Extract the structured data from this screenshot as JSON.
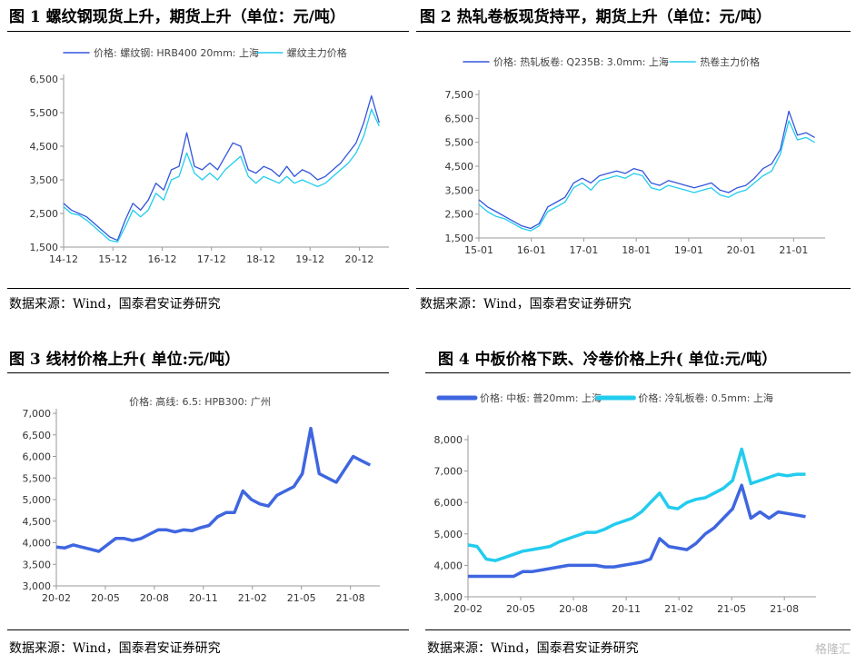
{
  "panels": [
    {
      "title": "图 1 螺纹钢现货上升，期货上升（单位：元/吨）",
      "source": "数据来源：Wind，国泰君安证券研究"
    },
    {
      "title": "图 2 热轧卷板现货持平，期货上升（单位：元/吨）",
      "source": "数据来源：Wind，国泰君安证券研究"
    },
    {
      "title": "图 3  线材价格上升( 单位:元/吨）",
      "source": "数据来源：Wind，国泰君安证券研究"
    },
    {
      "title": "图 4 中板价格下跌、冷卷价格上升( 单位:元/吨）",
      "source": "数据来源：Wind，国泰君安证券研究"
    }
  ],
  "watermark": "格隆汇",
  "chart_data": [
    {
      "type": "line",
      "xlabel": "",
      "ylabel": "",
      "x_ticks": [
        "14-12",
        "15-12",
        "16-12",
        "17-12",
        "18-12",
        "19-12",
        "20-12"
      ],
      "y_ticks": [
        "1,500",
        "2,500",
        "3,500",
        "4,500",
        "5,500",
        "6,500"
      ],
      "ylim": [
        1500,
        6500
      ],
      "legend": "top",
      "series": [
        {
          "name": "价格: 螺纹钢: HRB400 20mm: 上海",
          "color": "#3355dd",
          "x": [
            0,
            2,
            4,
            6,
            8,
            10,
            12,
            14,
            16,
            18,
            20,
            22,
            24,
            26,
            28,
            30,
            32,
            34,
            36,
            38,
            40,
            42,
            44,
            46,
            48,
            50,
            52,
            54,
            56,
            58,
            60,
            62,
            64,
            66,
            68,
            70,
            72,
            74,
            76,
            78,
            80,
            82
          ],
          "values": [
            2800,
            2600,
            2500,
            2400,
            2200,
            2000,
            1800,
            1700,
            2300,
            2800,
            2600,
            2900,
            3400,
            3200,
            3800,
            3900,
            4900,
            3900,
            3800,
            4000,
            3800,
            4200,
            4600,
            4500,
            3800,
            3700,
            3900,
            3800,
            3600,
            3900,
            3600,
            3800,
            3700,
            3500,
            3600,
            3800,
            4000,
            4300,
            4600,
            5200,
            6000,
            5200
          ]
        },
        {
          "name": "螺纹主力价格",
          "color": "#22ccee",
          "x": [
            0,
            2,
            4,
            6,
            8,
            10,
            12,
            14,
            16,
            18,
            20,
            22,
            24,
            26,
            28,
            30,
            32,
            34,
            36,
            38,
            40,
            42,
            44,
            46,
            48,
            50,
            52,
            54,
            56,
            58,
            60,
            62,
            64,
            66,
            68,
            70,
            72,
            74,
            76,
            78,
            80,
            82
          ],
          "values": [
            2700,
            2500,
            2450,
            2300,
            2100,
            1900,
            1700,
            1650,
            2100,
            2600,
            2400,
            2600,
            3100,
            2900,
            3500,
            3600,
            4300,
            3700,
            3500,
            3700,
            3500,
            3800,
            4000,
            4200,
            3600,
            3400,
            3600,
            3500,
            3400,
            3600,
            3400,
            3500,
            3400,
            3300,
            3400,
            3600,
            3800,
            4000,
            4300,
            4800,
            5600,
            5100
          ]
        }
      ]
    },
    {
      "type": "line",
      "xlabel": "",
      "ylabel": "",
      "x_ticks": [
        "15-01",
        "16-01",
        "17-01",
        "18-01",
        "19-01",
        "20-01",
        "21-01"
      ],
      "y_ticks": [
        "1,500",
        "2,500",
        "3,500",
        "4,500",
        "5,500",
        "6,500",
        "7,500"
      ],
      "ylim": [
        1500,
        7500
      ],
      "legend": "top",
      "series": [
        {
          "name": "价格: 热轧板卷: Q235B: 3.0mm: 上海",
          "color": "#3355dd",
          "x": [
            0,
            2,
            4,
            6,
            8,
            10,
            12,
            14,
            16,
            18,
            20,
            22,
            24,
            26,
            28,
            30,
            32,
            34,
            36,
            38,
            40,
            42,
            44,
            46,
            48,
            50,
            52,
            54,
            56,
            58,
            60,
            62,
            64,
            66,
            68,
            70,
            72,
            74,
            76,
            78
          ],
          "values": [
            3100,
            2800,
            2600,
            2400,
            2200,
            2000,
            1900,
            2100,
            2800,
            3000,
            3200,
            3800,
            4000,
            3800,
            4100,
            4200,
            4300,
            4200,
            4400,
            4300,
            3800,
            3700,
            3900,
            3800,
            3700,
            3600,
            3700,
            3800,
            3500,
            3400,
            3600,
            3700,
            4000,
            4400,
            4600,
            5200,
            6800,
            5800,
            5900,
            5700
          ]
        },
        {
          "name": "热卷主力价格",
          "color": "#22ccee",
          "x": [
            0,
            2,
            4,
            6,
            8,
            10,
            12,
            14,
            16,
            18,
            20,
            22,
            24,
            26,
            28,
            30,
            32,
            34,
            36,
            38,
            40,
            42,
            44,
            46,
            48,
            50,
            52,
            54,
            56,
            58,
            60,
            62,
            64,
            66,
            68,
            70,
            72,
            74,
            76,
            78
          ],
          "values": [
            2900,
            2600,
            2400,
            2300,
            2100,
            1900,
            1800,
            2000,
            2600,
            2800,
            3000,
            3600,
            3800,
            3500,
            3900,
            4000,
            4100,
            4000,
            4200,
            4100,
            3600,
            3500,
            3700,
            3600,
            3500,
            3400,
            3500,
            3600,
            3300,
            3200,
            3400,
            3500,
            3800,
            4100,
            4300,
            5000,
            6400,
            5600,
            5700,
            5500
          ]
        }
      ]
    },
    {
      "type": "line",
      "xlabel": "",
      "ylabel": "",
      "x_ticks": [
        "20-02",
        "20-05",
        "20-08",
        "20-11",
        "21-02",
        "21-05",
        "21-08"
      ],
      "y_ticks": [
        "3,000",
        "3,500",
        "4,000",
        "4,500",
        "5,000",
        "5,500",
        "6,000",
        "6,500",
        "7,000"
      ],
      "ylim": [
        3000,
        7000
      ],
      "legend": "top",
      "series": [
        {
          "name": "价格: 高线: 6.5: HPB300: 广州",
          "color": "#3f66e0",
          "x": [
            0,
            0.5,
            1,
            1.5,
            2,
            2.5,
            3,
            3.5,
            4,
            4.5,
            5,
            5.5,
            6,
            6.5,
            7,
            7.5,
            8,
            8.5,
            9,
            9.5,
            10,
            10.5,
            11,
            11.5,
            12,
            12.5,
            13,
            13.5,
            14,
            14.5,
            15,
            15.5,
            16,
            16.5,
            17,
            17.5,
            18,
            18.5
          ],
          "values": [
            3900,
            3880,
            3950,
            3900,
            3850,
            3800,
            3950,
            4100,
            4100,
            4050,
            4100,
            4200,
            4300,
            4300,
            4250,
            4300,
            4280,
            4350,
            4400,
            4600,
            4700,
            4700,
            5200,
            5000,
            4900,
            4850,
            5100,
            5200,
            5300,
            5600,
            6650,
            5600,
            5500,
            5400,
            5700,
            6000,
            5900,
            5800
          ]
        }
      ]
    },
    {
      "type": "line",
      "xlabel": "",
      "ylabel": "",
      "x_ticks": [
        "20-02",
        "20-05",
        "20-08",
        "20-11",
        "21-02",
        "21-05",
        "21-08"
      ],
      "y_ticks": [
        "3,000",
        "4,000",
        "5,000",
        "6,000",
        "7,000",
        "8,000"
      ],
      "ylim": [
        3000,
        8000
      ],
      "legend": "top",
      "series": [
        {
          "name": "价格: 中板: 普20mm: 上海",
          "color": "#3f66e0",
          "x": [
            0,
            0.5,
            1,
            1.5,
            2,
            2.5,
            3,
            3.5,
            4,
            4.5,
            5,
            5.5,
            6,
            6.5,
            7,
            7.5,
            8,
            8.5,
            9,
            9.5,
            10,
            10.5,
            11,
            11.5,
            12,
            12.5,
            13,
            13.5,
            14,
            14.5,
            15,
            15.5,
            16,
            16.5,
            17,
            17.5,
            18,
            18.5
          ],
          "values": [
            3650,
            3650,
            3650,
            3650,
            3650,
            3650,
            3800,
            3800,
            3850,
            3900,
            3950,
            4000,
            4000,
            4000,
            4000,
            3950,
            3950,
            4000,
            4050,
            4100,
            4200,
            4850,
            4600,
            4550,
            4500,
            4700,
            5000,
            5200,
            5500,
            5800,
            6550,
            5500,
            5700,
            5500,
            5700,
            5650,
            5600,
            5550
          ]
        },
        {
          "name": "价格: 冷轧板卷: 0.5mm: 上海",
          "color": "#22ccee",
          "x": [
            0,
            0.5,
            1,
            1.5,
            2,
            2.5,
            3,
            3.5,
            4,
            4.5,
            5,
            5.5,
            6,
            6.5,
            7,
            7.5,
            8,
            8.5,
            9,
            9.5,
            10,
            10.5,
            11,
            11.5,
            12,
            12.5,
            13,
            13.5,
            14,
            14.5,
            15,
            15.5,
            16,
            16.5,
            17,
            17.5,
            18,
            18.5
          ],
          "values": [
            4650,
            4600,
            4200,
            4150,
            4250,
            4350,
            4450,
            4500,
            4550,
            4600,
            4750,
            4850,
            4950,
            5050,
            5050,
            5150,
            5300,
            5400,
            5500,
            5700,
            6000,
            6300,
            5850,
            5800,
            6000,
            6100,
            6150,
            6300,
            6450,
            6700,
            7700,
            6600,
            6700,
            6800,
            6900,
            6850,
            6900,
            6900
          ]
        }
      ]
    }
  ]
}
